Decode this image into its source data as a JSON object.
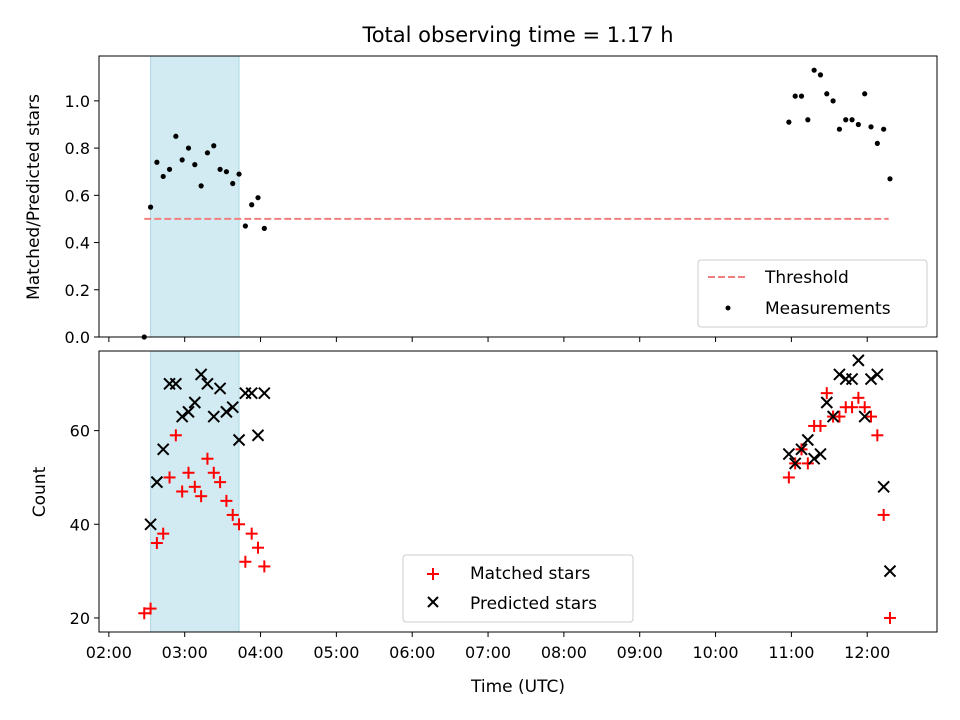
{
  "figure": {
    "title": "Total observing time = 1.17 h"
  },
  "colors": {
    "shade": "#add8e6",
    "threshold": "#f08080",
    "matched": "#ff0000",
    "predicted": "#000000",
    "measurement": "#000000"
  },
  "chart_data": [
    {
      "type": "scatter",
      "title": "Total observing time = 1.17 h",
      "xlabel": "",
      "ylabel": "Matched/Predicted stars",
      "ylim": [
        0.0,
        1.19
      ],
      "yticks": [
        "0.0",
        "0.2",
        "0.4",
        "0.6",
        "0.8",
        "1.0"
      ],
      "shaded_span_x": [
        "02:33",
        "03:43"
      ],
      "threshold": {
        "name": "Threshold",
        "value": 0.5,
        "x_range": [
          "02:28",
          "12:17"
        ],
        "style": "dashed"
      },
      "legend": {
        "placement": "lower-right",
        "entries": [
          "Threshold",
          "Measurements"
        ]
      },
      "series": [
        {
          "name": "Measurements",
          "x": [
            "02:28",
            "02:33",
            "02:38",
            "02:43",
            "02:48",
            "02:53",
            "02:58",
            "03:03",
            "03:08",
            "03:13",
            "03:18",
            "03:23",
            "03:28",
            "03:33",
            "03:38",
            "03:43",
            "03:48",
            "03:53",
            "03:58",
            "04:03",
            "10:58",
            "11:03",
            "11:08",
            "11:13",
            "11:18",
            "11:23",
            "11:28",
            "11:33",
            "11:38",
            "11:43",
            "11:48",
            "11:53",
            "11:58",
            "12:03",
            "12:08",
            "12:13",
            "12:18"
          ],
          "y": [
            0.0,
            0.55,
            0.74,
            0.68,
            0.71,
            0.85,
            0.75,
            0.8,
            0.73,
            0.64,
            0.78,
            0.81,
            0.71,
            0.7,
            0.65,
            0.69,
            0.47,
            0.56,
            0.59,
            0.46,
            0.91,
            1.02,
            1.02,
            0.92,
            1.13,
            1.11,
            1.03,
            1.0,
            0.88,
            0.92,
            0.92,
            0.9,
            1.03,
            0.89,
            0.82,
            0.88,
            0.67
          ]
        }
      ]
    },
    {
      "type": "scatter",
      "xlabel": "Time (UTC)",
      "ylabel": "Count",
      "ylim": [
        17,
        77
      ],
      "yticks": [
        "20",
        "40",
        "60"
      ],
      "xticks": [
        "02:00",
        "03:00",
        "04:00",
        "05:00",
        "06:00",
        "07:00",
        "08:00",
        "09:00",
        "10:00",
        "11:00",
        "12:00"
      ],
      "shaded_span_x": [
        "02:33",
        "03:43"
      ],
      "legend": {
        "placement": "lower-center",
        "entries": [
          "Matched stars",
          "Predicted stars"
        ]
      },
      "series": [
        {
          "name": "Matched stars",
          "marker": "plus",
          "x": [
            "02:28",
            "02:33",
            "02:38",
            "02:43",
            "02:48",
            "02:53",
            "02:58",
            "03:03",
            "03:08",
            "03:13",
            "03:18",
            "03:23",
            "03:28",
            "03:33",
            "03:38",
            "03:43",
            "03:48",
            "03:53",
            "03:58",
            "04:03",
            "10:58",
            "11:03",
            "11:08",
            "11:13",
            "11:18",
            "11:23",
            "11:28",
            "11:33",
            "11:38",
            "11:43",
            "11:48",
            "11:53",
            "11:58",
            "12:03",
            "12:08",
            "12:13",
            "12:18"
          ],
          "y": [
            21,
            22,
            36,
            38,
            50,
            59,
            47,
            51,
            48,
            46,
            54,
            51,
            49,
            45,
            42,
            40,
            32,
            38,
            35,
            31,
            50,
            53,
            56,
            53,
            61,
            61,
            68,
            63,
            63,
            65,
            65,
            67,
            65,
            63,
            59,
            42,
            20
          ]
        },
        {
          "name": "Predicted stars",
          "marker": "x",
          "x": [
            "02:33",
            "02:38",
            "02:43",
            "02:48",
            "02:53",
            "02:58",
            "03:03",
            "03:08",
            "03:13",
            "03:18",
            "03:23",
            "03:28",
            "03:33",
            "03:38",
            "03:43",
            "03:48",
            "03:53",
            "03:58",
            "04:03",
            "10:58",
            "11:03",
            "11:08",
            "11:13",
            "11:18",
            "11:23",
            "11:28",
            "11:33",
            "11:38",
            "11:43",
            "11:48",
            "11:53",
            "11:58",
            "12:03",
            "12:08",
            "12:13",
            "12:18"
          ],
          "y": [
            40,
            49,
            56,
            70,
            70,
            63,
            64,
            66,
            72,
            70,
            63,
            69,
            64,
            65,
            58,
            68,
            68,
            59,
            68,
            55,
            53,
            56,
            58,
            54,
            55,
            66,
            63,
            72,
            71,
            71,
            75,
            63,
            71,
            72,
            48,
            30
          ]
        }
      ]
    }
  ]
}
